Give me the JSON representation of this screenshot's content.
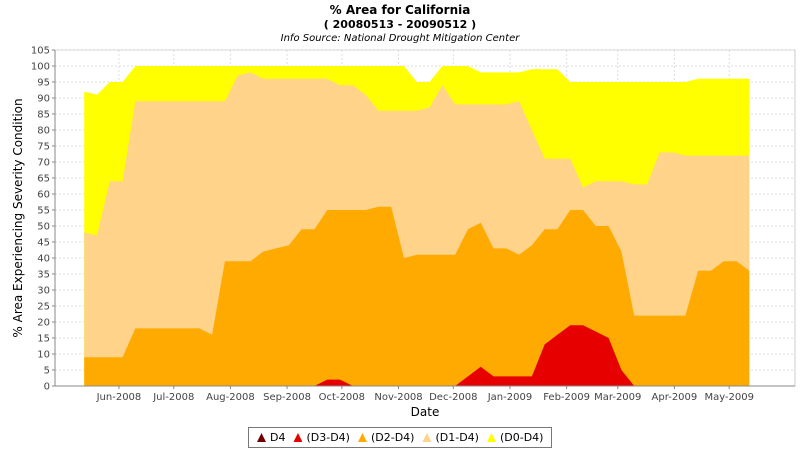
{
  "header": {
    "title": "% Area for California",
    "subtitle": "( 20080513 - 20090512 )",
    "source": "Info Source:  National Drought Mitigation Center"
  },
  "chart_data": {
    "type": "area",
    "stacked": false,
    "title": "% Area for California",
    "xlabel": "Date",
    "ylabel": "% Area Experiencing Severity Condition",
    "ylim": [
      0,
      105
    ],
    "y_ticks": [
      0,
      5,
      10,
      15,
      20,
      25,
      30,
      35,
      40,
      45,
      50,
      55,
      60,
      65,
      70,
      75,
      80,
      85,
      90,
      95,
      100,
      105
    ],
    "x_ticks": [
      "Jun-2008",
      "Jul-2008",
      "Aug-2008",
      "Sep-2008",
      "Oct-2008",
      "Nov-2008",
      "Dec-2008",
      "Jan-2009",
      "Feb-2009",
      "Mar-2009",
      "Apr-2009",
      "May-2009"
    ],
    "x": [
      "2008-05-13",
      "2008-05-20",
      "2008-05-27",
      "2008-06-03",
      "2008-06-10",
      "2008-06-17",
      "2008-06-24",
      "2008-07-01",
      "2008-07-08",
      "2008-07-15",
      "2008-07-22",
      "2008-07-29",
      "2008-08-05",
      "2008-08-12",
      "2008-08-19",
      "2008-08-26",
      "2008-09-02",
      "2008-09-09",
      "2008-09-16",
      "2008-09-23",
      "2008-09-30",
      "2008-10-07",
      "2008-10-14",
      "2008-10-21",
      "2008-10-28",
      "2008-11-04",
      "2008-11-11",
      "2008-11-18",
      "2008-11-25",
      "2008-12-02",
      "2008-12-09",
      "2008-12-16",
      "2008-12-23",
      "2008-12-30",
      "2009-01-06",
      "2009-01-13",
      "2009-01-20",
      "2009-01-27",
      "2009-02-03",
      "2009-02-10",
      "2009-02-17",
      "2009-02-24",
      "2009-03-03",
      "2009-03-10",
      "2009-03-17",
      "2009-03-24",
      "2009-03-31",
      "2009-04-07",
      "2009-04-14",
      "2009-04-21",
      "2009-04-28",
      "2009-05-05",
      "2009-05-12"
    ],
    "grid": true,
    "legend_position": "bottom",
    "series": [
      {
        "name": "(D0-D4)",
        "color": "#FFFF00",
        "values": [
          92,
          91,
          95,
          95,
          100,
          100,
          100,
          100,
          100,
          100,
          100,
          100,
          100,
          100,
          100,
          100,
          100,
          100,
          100,
          100,
          100,
          100,
          100,
          100,
          100,
          100,
          95,
          95,
          100,
          100,
          100,
          98,
          98,
          98,
          98,
          99,
          99,
          99,
          95,
          95,
          95,
          95,
          95,
          95,
          95,
          95,
          95,
          95,
          96,
          96,
          96,
          96,
          96
        ]
      },
      {
        "name": "(D1-D4)",
        "color": "#FFD38A",
        "values": [
          48,
          47,
          64,
          64,
          89,
          89,
          89,
          89,
          89,
          89,
          89,
          89,
          97,
          98,
          96,
          96,
          96,
          96,
          96,
          96,
          94,
          94,
          91,
          86,
          86,
          86,
          86,
          87,
          94,
          88,
          88,
          88,
          88,
          88,
          89,
          80,
          71,
          71,
          71,
          62,
          64,
          64,
          64,
          63,
          63,
          73,
          73,
          72,
          72,
          72,
          72,
          72,
          72
        ]
      },
      {
        "name": "(D2-D4)",
        "color": "#FFAA00",
        "values": [
          9,
          9,
          9,
          9,
          18,
          18,
          18,
          18,
          18,
          18,
          16,
          39,
          39,
          39,
          42,
          43,
          44,
          49,
          49,
          55,
          55,
          55,
          55,
          56,
          56,
          40,
          41,
          41,
          41,
          41,
          49,
          51,
          43,
          43,
          41,
          44,
          49,
          49,
          55,
          55,
          50,
          50,
          42,
          22,
          22,
          22,
          22,
          22,
          36,
          36,
          39,
          39,
          36
        ]
      },
      {
        "name": "(D3-D4)",
        "color": "#E60000",
        "values": [
          0,
          0,
          0,
          0,
          0,
          0,
          0,
          0,
          0,
          0,
          0,
          0,
          0,
          0,
          0,
          0,
          0,
          0,
          0,
          2,
          2,
          0,
          0,
          0,
          0,
          0,
          0,
          0,
          0,
          0,
          3,
          6,
          3,
          3,
          3,
          3,
          13,
          16,
          19,
          19,
          17,
          15,
          5,
          0,
          0,
          0,
          0,
          0,
          0,
          0,
          0,
          0,
          0
        ]
      },
      {
        "name": "D4",
        "color": "#730000",
        "values": [
          0,
          0,
          0,
          0,
          0,
          0,
          0,
          0,
          0,
          0,
          0,
          0,
          0,
          0,
          0,
          0,
          0,
          0,
          0,
          0,
          0,
          0,
          0,
          0,
          0,
          0,
          0,
          0,
          0,
          0,
          0,
          0,
          0,
          0,
          0,
          0,
          0,
          0,
          0,
          0,
          0,
          0,
          0,
          0,
          0,
          0,
          0,
          0,
          0,
          0,
          0,
          0,
          0
        ]
      }
    ],
    "legend_order": [
      "D4",
      "(D3-D4)",
      "(D2-D4)",
      "(D1-D4)",
      "(D0-D4)"
    ]
  }
}
